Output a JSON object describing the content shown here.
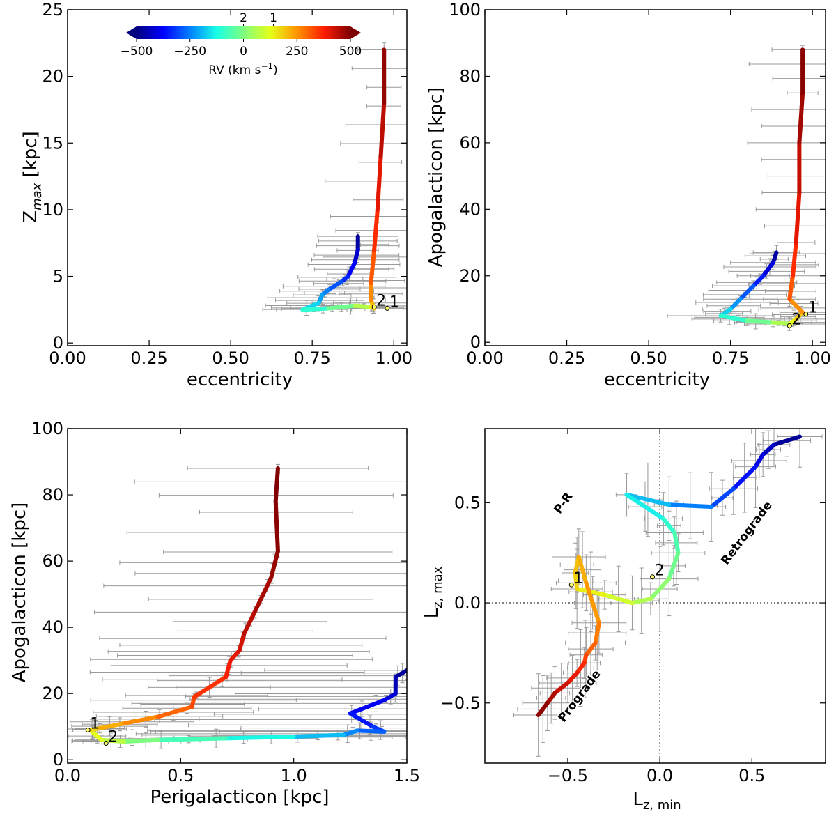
{
  "colors": {
    "errorbar": "#999999",
    "colormap": [
      "#00007f",
      "#0000ff",
      "#007fff",
      "#19ffe5",
      "#7fff7f",
      "#e5ff19",
      "#ff9400",
      "#ff1d00",
      "#7f0000"
    ]
  },
  "colorbar": {
    "label": "RV (km s",
    "label_sup": "−1",
    "label_end": ")",
    "ticks": [
      "−500",
      "−250",
      "0",
      "250",
      "500"
    ],
    "range": [
      -500,
      500
    ],
    "marker_labels": [
      "2",
      "1"
    ],
    "marker_values": [
      0,
      140
    ]
  },
  "chart_data": [
    {
      "id": "zmax-vs-ecc",
      "type": "line",
      "xlabel": "eccentricity",
      "ylabel": "Z",
      "ylabel_sub": "max",
      "ylabel_unit": " [kpc]",
      "xlim": [
        0.0,
        1.04
      ],
      "ylim": [
        -0.2,
        25
      ],
      "xticks": [
        0.0,
        0.25,
        0.5,
        0.75,
        1.0
      ],
      "xtick_labels": [
        "0.00",
        "0.25",
        "0.50",
        "0.75",
        "1.00"
      ],
      "yticks": [
        0,
        5,
        10,
        15,
        20,
        25
      ],
      "ytick_labels": [
        "0",
        "5",
        "10",
        "15",
        "20",
        "25"
      ],
      "series": [
        {
          "name": "track",
          "x": [
            0.89,
            0.89,
            0.88,
            0.86,
            0.84,
            0.8,
            0.78,
            0.77,
            0.72,
            0.8,
            0.88,
            0.93,
            0.94,
            0.93,
            0.93,
            0.94,
            0.95,
            0.96,
            0.97,
            0.97
          ],
          "y": [
            8.0,
            7.0,
            6.0,
            5.0,
            4.6,
            4.0,
            3.6,
            3.0,
            2.5,
            2.6,
            2.8,
            2.7,
            2.6,
            3.2,
            4.5,
            7.0,
            10.0,
            14.0,
            18.0,
            22.0
          ],
          "rv": [
            -490,
            -450,
            -400,
            -360,
            -320,
            -270,
            -230,
            -200,
            -140,
            -60,
            20,
            110,
            180,
            230,
            290,
            340,
            380,
            420,
            460,
            500
          ]
        }
      ],
      "markers": [
        {
          "label": "2",
          "x": 0.94,
          "y": 2.7
        },
        {
          "label": "1",
          "x": 0.98,
          "y": 2.6
        }
      ]
    },
    {
      "id": "apo-vs-ecc",
      "type": "line",
      "xlabel": "eccentricity",
      "ylabel": "Apogalacticon [kpc]",
      "xlim": [
        0.0,
        1.04
      ],
      "ylim": [
        -1,
        100
      ],
      "xticks": [
        0.0,
        0.25,
        0.5,
        0.75,
        1.0
      ],
      "xtick_labels": [
        "0.00",
        "0.25",
        "0.50",
        "0.75",
        "1.00"
      ],
      "yticks": [
        0,
        20,
        40,
        60,
        80,
        100
      ],
      "ytick_labels": [
        "0",
        "20",
        "40",
        "60",
        "80",
        "100"
      ],
      "series": [
        {
          "name": "track",
          "x": [
            0.89,
            0.88,
            0.85,
            0.82,
            0.78,
            0.75,
            0.72,
            0.8,
            0.88,
            0.93,
            0.95,
            0.97,
            0.93,
            0.94,
            0.95,
            0.96,
            0.96,
            0.97,
            0.97
          ],
          "y": [
            27,
            24,
            20,
            17,
            13,
            10,
            8,
            6.5,
            6.0,
            5.5,
            7.0,
            9.0,
            13,
            20,
            30,
            45,
            60,
            75,
            88
          ],
          "rv": [
            -490,
            -440,
            -380,
            -320,
            -260,
            -200,
            -140,
            -60,
            20,
            90,
            160,
            220,
            290,
            340,
            380,
            420,
            450,
            480,
            500
          ]
        }
      ],
      "markers": [
        {
          "label": "2",
          "x": 0.93,
          "y": 5
        },
        {
          "label": "1",
          "x": 0.98,
          "y": 8.5
        }
      ]
    },
    {
      "id": "apo-vs-peri",
      "type": "line",
      "xlabel": "Perigalacticon [kpc]",
      "ylabel": "Apogalacticon [kpc]",
      "xlim": [
        0.0,
        1.5
      ],
      "ylim": [
        -1,
        100
      ],
      "xticks": [
        0.0,
        0.5,
        1.0,
        1.5
      ],
      "xtick_labels": [
        "0.0",
        "0.5",
        "1.0",
        "1.5"
      ],
      "yticks": [
        0,
        20,
        40,
        60,
        80,
        100
      ],
      "ytick_labels": [
        "0",
        "20",
        "40",
        "60",
        "80",
        "100"
      ],
      "series": [
        {
          "name": "track",
          "x": [
            1.5,
            1.45,
            1.45,
            1.4,
            1.25,
            1.35,
            1.4,
            1.28,
            1.22,
            1.0,
            0.7,
            0.4,
            0.25,
            0.15,
            0.1,
            0.14,
            0.25,
            0.4,
            0.55,
            0.56,
            0.7,
            0.72,
            0.76,
            0.78,
            0.83,
            0.9,
            0.93,
            0.92,
            0.93
          ],
          "y": [
            27,
            25,
            20,
            18,
            14,
            10,
            8.5,
            8.8,
            7.5,
            7.0,
            6.5,
            6.0,
            5.5,
            6.0,
            9.0,
            9.5,
            11,
            13,
            16,
            19,
            25,
            30,
            33,
            38,
            45,
            55,
            63,
            78,
            88
          ],
          "rv": [
            -490,
            -460,
            -430,
            -400,
            -370,
            -340,
            -300,
            -260,
            -220,
            -160,
            -100,
            -40,
            40,
            100,
            150,
            200,
            240,
            280,
            320,
            340,
            370,
            390,
            410,
            430,
            450,
            470,
            485,
            495,
            500
          ]
        }
      ],
      "markers": [
        {
          "label": "1",
          "x": 0.09,
          "y": 9
        },
        {
          "label": "2",
          "x": 0.17,
          "y": 5
        }
      ]
    },
    {
      "id": "lzmax-vs-lzmin",
      "type": "line",
      "xlabel": "L",
      "xlabel_sub": "z, min",
      "ylabel": "L",
      "ylabel_sub": "z, max",
      "xlim": [
        -0.95,
        0.9
      ],
      "ylim": [
        -0.8,
        0.87
      ],
      "xticks": [
        -0.5,
        0.0,
        0.5
      ],
      "xtick_labels": [
        "−0.5",
        "0.0",
        "0.5"
      ],
      "yticks": [
        -0.5,
        0.0,
        0.5
      ],
      "ytick_labels": [
        "−0.5",
        "0.0",
        "0.5"
      ],
      "region_labels": [
        "P-R",
        "Retrograde",
        "Prograde"
      ],
      "series": [
        {
          "name": "track",
          "x": [
            0.76,
            0.62,
            0.56,
            0.52,
            0.4,
            0.28,
            0.05,
            -0.18,
            0.02,
            0.08,
            0.1,
            0.05,
            -0.05,
            -0.15,
            -0.3,
            -0.45,
            -0.46,
            -0.44,
            -0.4,
            -0.33,
            -0.35,
            -0.4,
            -0.41,
            -0.45,
            -0.5,
            -0.57,
            -0.61,
            -0.66
          ],
          "y": [
            0.83,
            0.79,
            0.74,
            0.68,
            0.57,
            0.48,
            0.49,
            0.54,
            0.42,
            0.35,
            0.25,
            0.12,
            0.02,
            0.0,
            0.04,
            0.07,
            0.15,
            0.23,
            0.1,
            -0.1,
            -0.2,
            -0.26,
            -0.3,
            -0.35,
            -0.4,
            -0.45,
            -0.5,
            -0.56
          ],
          "rv": [
            -500,
            -450,
            -420,
            -390,
            -330,
            -280,
            -220,
            -160,
            -120,
            -80,
            -40,
            0,
            40,
            80,
            120,
            160,
            190,
            210,
            230,
            260,
            290,
            320,
            350,
            380,
            410,
            440,
            470,
            500
          ]
        }
      ],
      "markers": [
        {
          "label": "1",
          "x": -0.48,
          "y": 0.09
        },
        {
          "label": "2",
          "x": -0.04,
          "y": 0.13
        }
      ]
    }
  ]
}
